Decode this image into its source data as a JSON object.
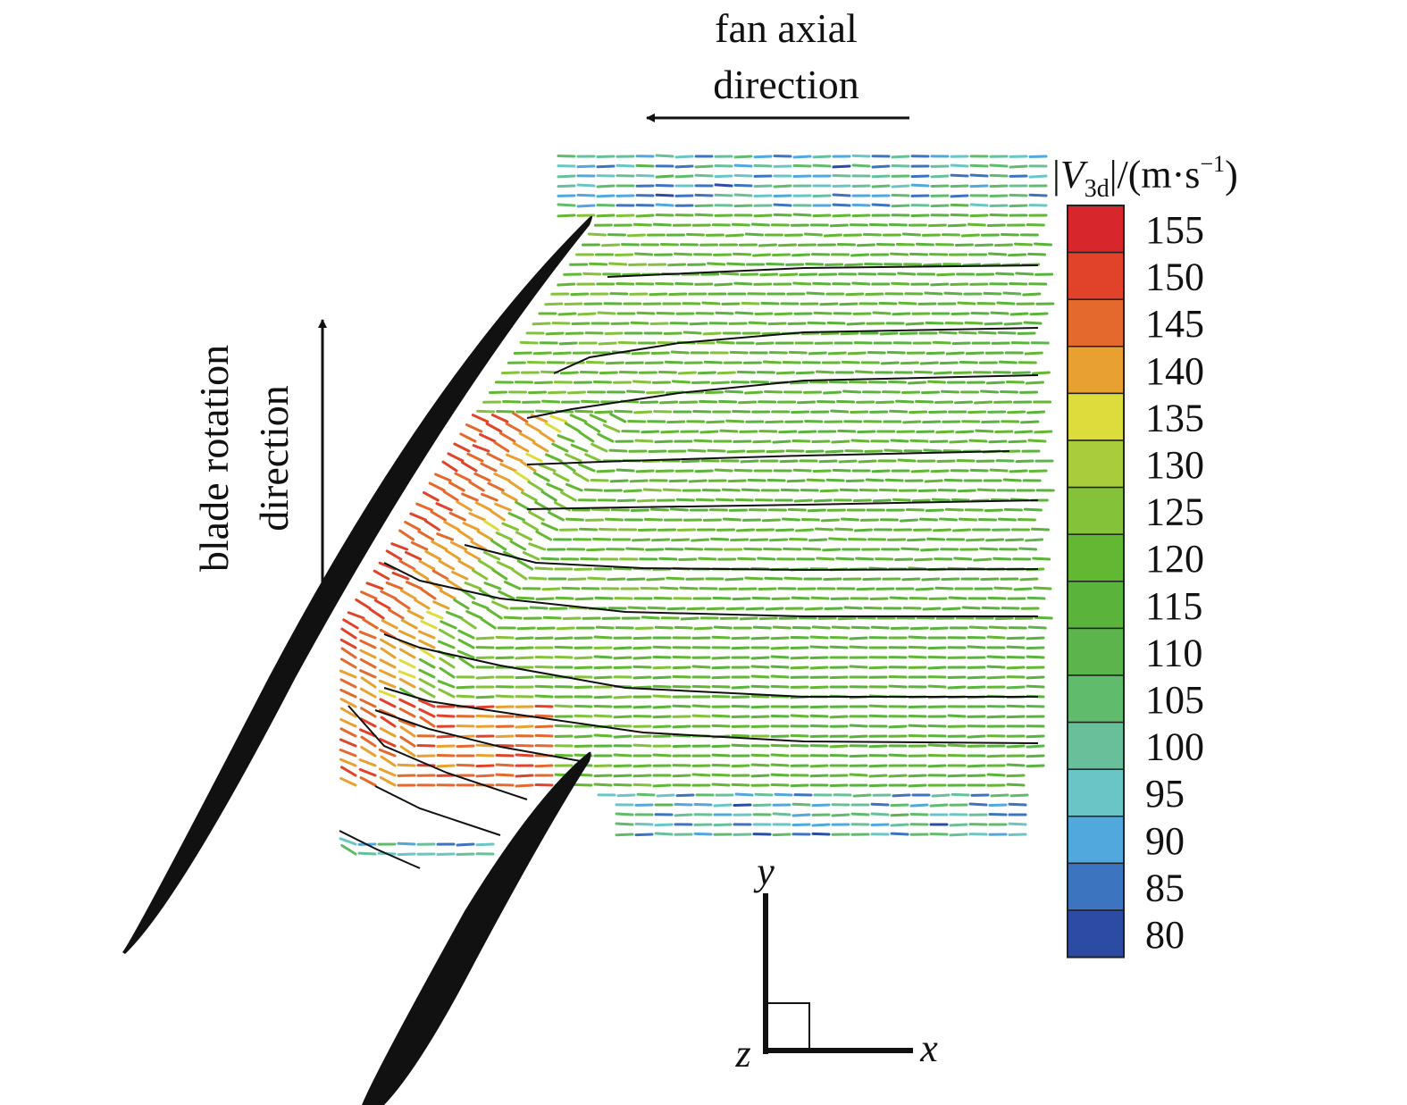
{
  "annotations": {
    "axial_line1": "fan axial",
    "axial_line2": "direction",
    "rotation_line1": "blade rotation",
    "rotation_line2": "direction"
  },
  "colorbar": {
    "title_prefix": "|",
    "title_var": "V",
    "title_sub": "3d",
    "title_mid": "|/(m·s",
    "title_sup": "−1",
    "title_end": ")",
    "levels": [
      "155",
      "150",
      "145",
      "140",
      "135",
      "130",
      "125",
      "120",
      "115",
      "110",
      "105",
      "100",
      "95",
      "90",
      "85",
      "80"
    ],
    "colors": [
      "#d7262c",
      "#e0432a",
      "#e4692c",
      "#e8a030",
      "#dcdc3c",
      "#a8cc3c",
      "#84c23a",
      "#62b832",
      "#5ab43c",
      "#5cb54c",
      "#60bc6c",
      "#68c09a",
      "#6ac6c6",
      "#50a8dc",
      "#3c74c0",
      "#2c4ca4"
    ]
  },
  "axes_triad": {
    "x": "x",
    "y": "y",
    "z": "z"
  }
}
